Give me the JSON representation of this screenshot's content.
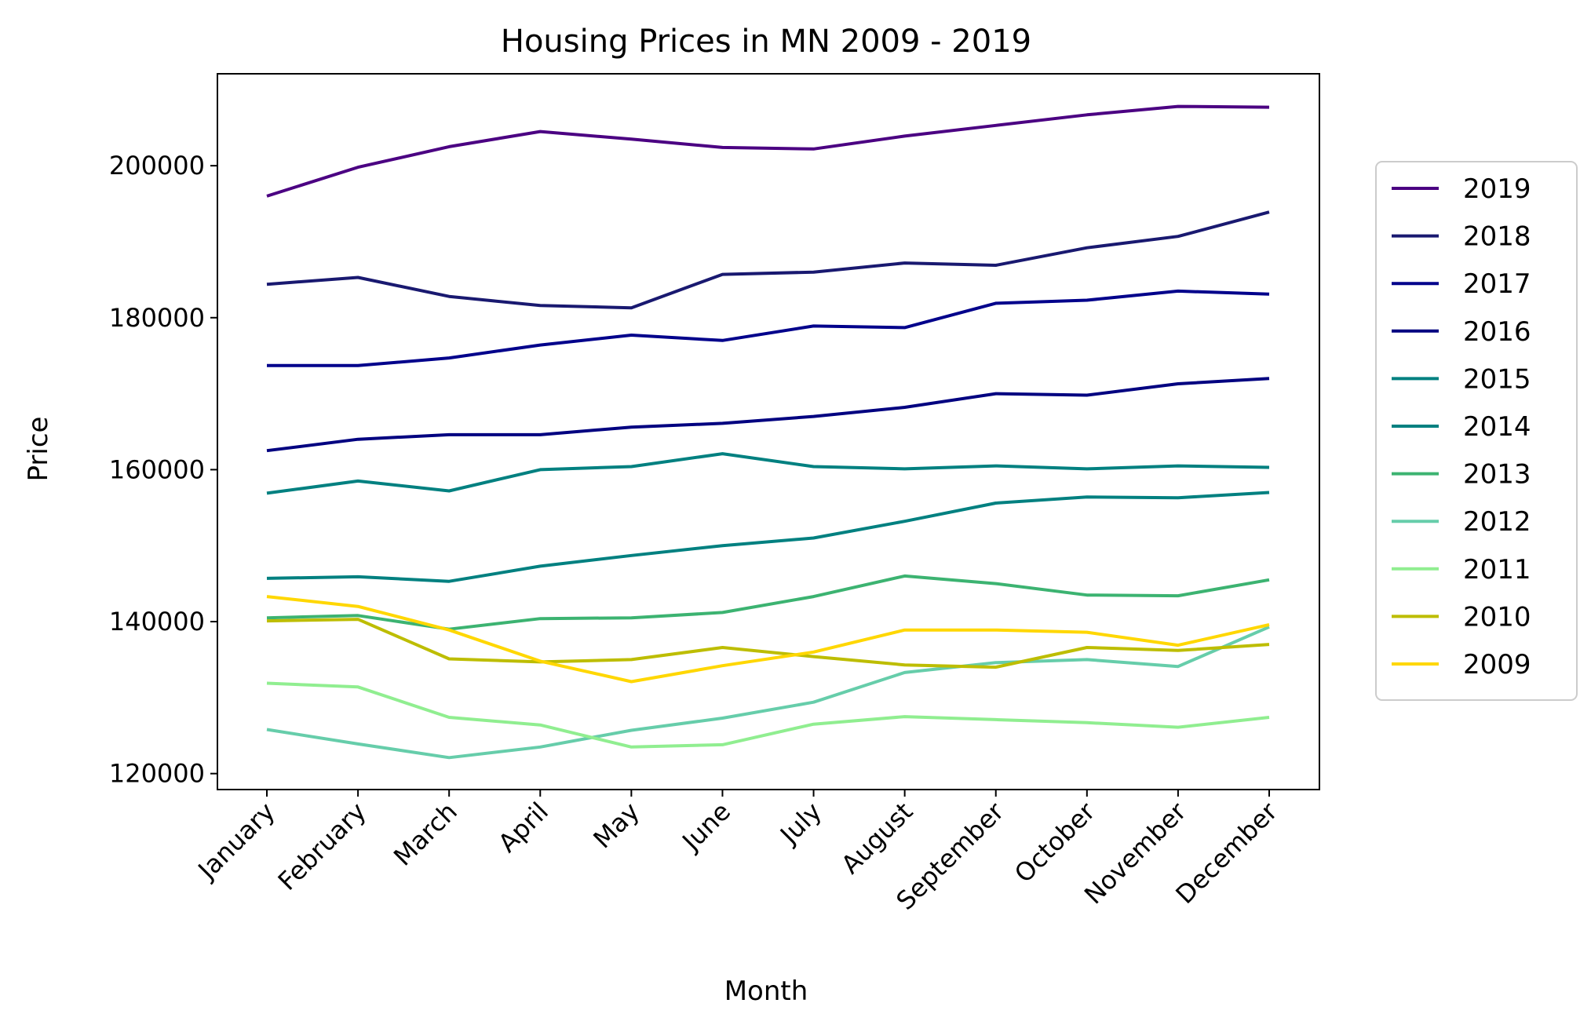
{
  "chart_data": {
    "type": "line",
    "title": "Housing Prices in MN 2009 - 2019",
    "xlabel": "Month",
    "ylabel": "Price",
    "ylim": [
      117900,
      212100
    ],
    "yticks": [
      120000,
      140000,
      160000,
      180000,
      200000
    ],
    "categories": [
      "January",
      "February",
      "March",
      "April",
      "May",
      "June",
      "July",
      "August",
      "September",
      "October",
      "November",
      "December"
    ],
    "legend_position": "right",
    "grid": false,
    "series": [
      {
        "name": "2019",
        "color": "#4b0082",
        "values": [
          196000,
          199800,
          202500,
          204500,
          203500,
          202400,
          202200,
          203900,
          205300,
          206700,
          207800,
          207700
        ]
      },
      {
        "name": "2018",
        "color": "#191970",
        "values": [
          184400,
          185300,
          182800,
          181600,
          181300,
          185700,
          186000,
          187200,
          186900,
          189200,
          190700,
          193900
        ]
      },
      {
        "name": "2017",
        "color": "#00008b",
        "values": [
          173700,
          173700,
          174700,
          176400,
          177700,
          177000,
          178900,
          178700,
          181900,
          182300,
          183500,
          183100
        ]
      },
      {
        "name": "2016",
        "color": "#000080",
        "values": [
          162500,
          164000,
          164600,
          164600,
          165600,
          166100,
          167000,
          168200,
          170000,
          169800,
          171300,
          172000
        ]
      },
      {
        "name": "2015",
        "color": "#008080",
        "values": [
          156900,
          158500,
          157200,
          160000,
          160400,
          162100,
          160400,
          160100,
          160500,
          160100,
          160500,
          160300
        ]
      },
      {
        "name": "2014",
        "color": "#008080",
        "values": [
          145700,
          145900,
          145300,
          147300,
          148700,
          150000,
          151000,
          153200,
          155600,
          156400,
          156300,
          157000
        ]
      },
      {
        "name": "2013",
        "color": "#3cb371",
        "values": [
          140500,
          140800,
          139000,
          140400,
          140500,
          141200,
          143300,
          146000,
          145000,
          143500,
          143400,
          145500
        ]
      },
      {
        "name": "2012",
        "color": "#66cdaa",
        "values": [
          125800,
          123900,
          122100,
          123500,
          125700,
          127300,
          129400,
          133300,
          134600,
          135000,
          134100,
          139300
        ]
      },
      {
        "name": "2011",
        "color": "#90ee90",
        "values": [
          131900,
          131400,
          127400,
          126400,
          123500,
          123800,
          126500,
          127500,
          127100,
          126700,
          126100,
          127400
        ]
      },
      {
        "name": "2010",
        "color": "#bdbd00",
        "values": [
          140100,
          140300,
          135100,
          134700,
          135000,
          136600,
          135400,
          134300,
          134000,
          136600,
          136200,
          137000
        ]
      },
      {
        "name": "2009",
        "color": "#ffd700",
        "values": [
          143300,
          142000,
          138900,
          134800,
          132100,
          134200,
          136000,
          138900,
          138900,
          138600,
          136900,
          139600
        ]
      }
    ]
  }
}
